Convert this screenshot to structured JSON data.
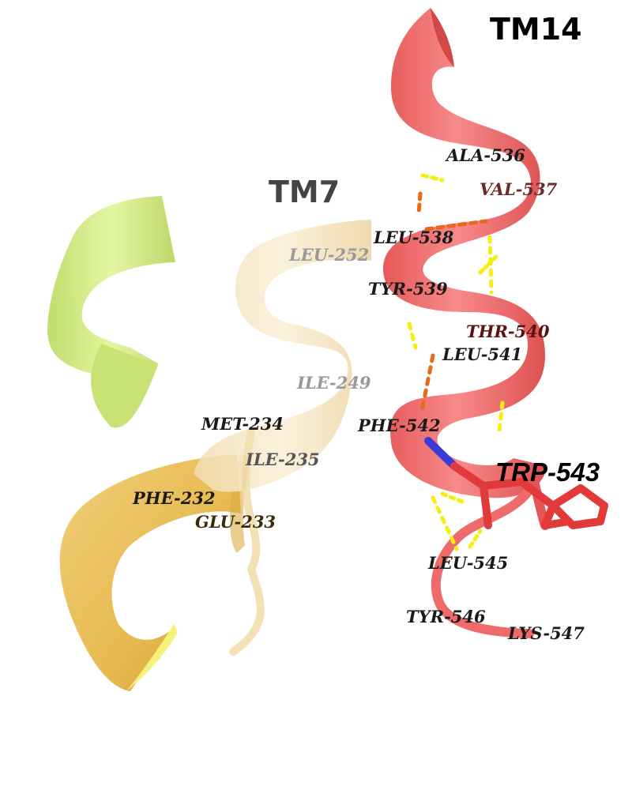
{
  "helices": {
    "tm14": "TM14",
    "tm7": "TM7"
  },
  "residues": {
    "ala536": "ALA-536",
    "val537": "VAL-537",
    "leu538": "LEU-538",
    "tyr539": "TYR-539",
    "thr540": "THR-540",
    "leu541": "LEU-541",
    "phe542": "PHE-542",
    "trp543": "TRP-543",
    "leu545": "LEU-545",
    "tyr546": "TYR-546",
    "lys547": "LYS-547",
    "leu252": "LEU-252",
    "ile249": "ILE-249",
    "met234": "MET-234",
    "ile235": "ILE-235",
    "phe232": "PHE-232",
    "glu233": "GLU-233"
  },
  "colors": {
    "tm14_ribbon": "#f06b6b",
    "tm14_dark": "#d94f4f",
    "tm7_ribbon": "#f3dcaa",
    "lower_helix": "#edc35e",
    "left_helix": "#d4ec7a",
    "hbond": "#f5ee10",
    "hbond_inner": "#e9691a",
    "nitrogen": "#3b3bd6",
    "sidechain": "#e23a3a"
  }
}
